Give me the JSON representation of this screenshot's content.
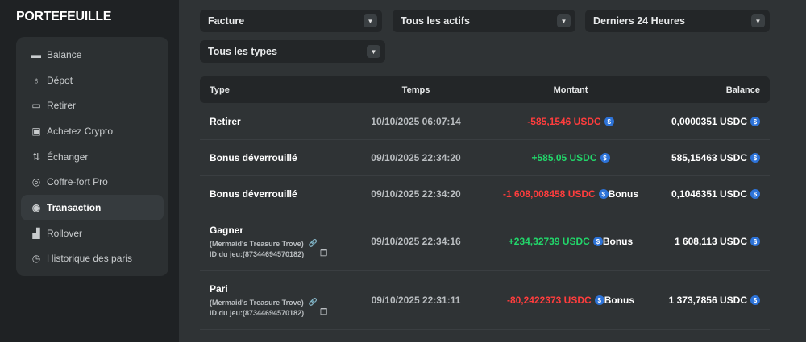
{
  "sidebar": {
    "title": "PORTEFEUILLE",
    "items": [
      {
        "label": "Balance",
        "icon": "wallet-icon",
        "g": "▬"
      },
      {
        "label": "Dépot",
        "icon": "piggy-bank-icon",
        "g": "♁"
      },
      {
        "label": "Retirer",
        "icon": "withdraw-icon",
        "g": "▭"
      },
      {
        "label": "Achetez Crypto",
        "icon": "buy-crypto-icon",
        "g": "▣"
      },
      {
        "label": "Échanger",
        "icon": "swap-icon",
        "g": "⇅"
      },
      {
        "label": "Coffre-fort Pro",
        "icon": "vault-icon",
        "g": "◎"
      },
      {
        "label": "Transaction",
        "icon": "transaction-icon",
        "g": "◉",
        "active": true
      },
      {
        "label": "Rollover",
        "icon": "rollover-icon",
        "g": "▟"
      },
      {
        "label": "Historique des paris",
        "icon": "clock-icon",
        "g": "◷"
      }
    ]
  },
  "filters": {
    "type": "Facture",
    "assets": "Tous les actifs",
    "period": "Derniers 24 Heures",
    "kinds": "Tous les types"
  },
  "table": {
    "headers": {
      "type": "Type",
      "time": "Temps",
      "amount": "Montant",
      "balance": "Balance"
    },
    "rows": [
      {
        "type": "Retirer",
        "time": "10/10/2025 06:07:14",
        "amount": "-585,1546 USDC",
        "sign": "neg",
        "bonus": "",
        "balance": "0,0000351 USDC"
      },
      {
        "type": "Bonus déverrouillé",
        "time": "09/10/2025 22:34:20",
        "amount": "+585,05 USDC",
        "sign": "pos",
        "bonus": "",
        "balance": "585,15463 USDC"
      },
      {
        "type": "Bonus déverrouillé",
        "time": "09/10/2025 22:34:20",
        "amount": "-1 608,008458 USDC",
        "sign": "neg",
        "bonus": "Bonus",
        "balance": "0,1046351 USDC"
      },
      {
        "type": "Gagner",
        "game": "(Mermaid's Treasure Trove)",
        "game_id": "ID du jeu:(87344694570182)",
        "time": "09/10/2025 22:34:16",
        "amount": "+234,32739 USDC",
        "sign": "pos",
        "bonus": "Bonus",
        "balance": "1 608,113 USDC"
      },
      {
        "type": "Pari",
        "game": "(Mermaid's Treasure Trove)",
        "game_id": "ID du jeu:(87344694570182)",
        "time": "09/10/2025 22:31:11",
        "amount": "-80,2422373 USDC",
        "sign": "neg",
        "bonus": "Bonus",
        "balance": "1 373,7856 USDC"
      }
    ]
  },
  "colors": {
    "negative": "#ff3d3d",
    "positive": "#22d66a",
    "usdc": "#2d73d8"
  }
}
